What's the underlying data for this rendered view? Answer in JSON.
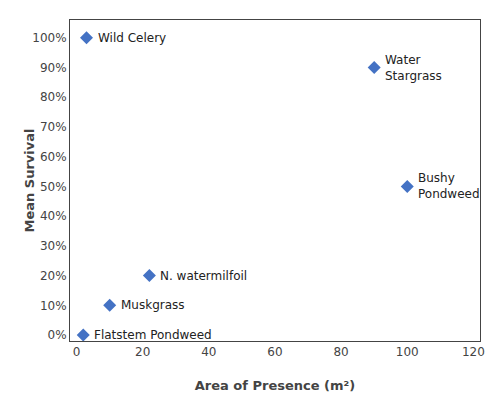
{
  "chart_data": {
    "type": "scatter",
    "x": [
      3,
      90,
      100,
      22,
      10,
      2
    ],
    "values": [
      1.0,
      0.9,
      0.5,
      0.2,
      0.1,
      0.0
    ],
    "annotations": [
      "Wild Celery",
      "Water\nStargrass",
      "Bushy\nPondweed",
      "N. watermilfoil",
      "Muskgrass",
      "Flatstem Pondweed"
    ],
    "color": "#4472C4",
    "marker": "diamond",
    "xlabel": "Area of Presence (m²)",
    "ylabel": "Mean Survival",
    "xlim": [
      -2,
      122
    ],
    "ylim": [
      -0.02,
      1.06
    ],
    "xticks": [
      0,
      20,
      40,
      60,
      80,
      100,
      120
    ],
    "yticks": [
      {
        "value": 0.0,
        "label": "0%"
      },
      {
        "value": 0.1,
        "label": "10%"
      },
      {
        "value": 0.2,
        "label": "20%"
      },
      {
        "value": 0.3,
        "label": "30%"
      },
      {
        "value": 0.4,
        "label": "40%"
      },
      {
        "value": 0.5,
        "label": "50%"
      },
      {
        "value": 0.6,
        "label": "60%"
      },
      {
        "value": 0.7,
        "label": "70%"
      },
      {
        "value": 0.8,
        "label": "80%"
      },
      {
        "value": 0.9,
        "label": "90%"
      },
      {
        "value": 1.0,
        "label": "100%"
      }
    ],
    "grid": false
  }
}
